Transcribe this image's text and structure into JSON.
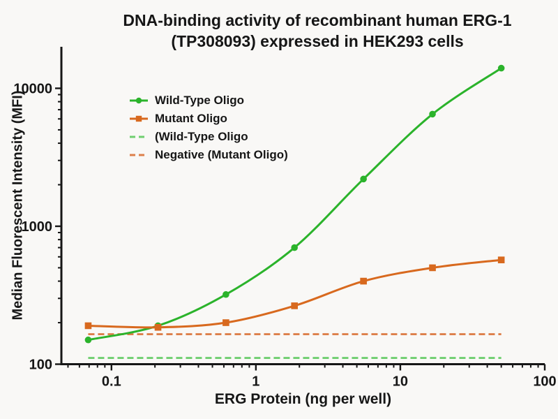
{
  "figure": {
    "background": "#f9f8f6",
    "text_color": "#161616",
    "axis_color": "#161616"
  },
  "chart_data": {
    "type": "line",
    "title": "DNA-binding activity of recombinant human ERG-1 (TP308093) expressed in HEK293 cells",
    "title_line1": "DNA-binding activity of recombinant human ERG-1",
    "title_line2": "(TP308093) expressed in HEK293 cells",
    "xlabel": "ERG Protein (ng per well)",
    "ylabel": "Median Fluorescent Intensity  (MFI)",
    "xscale": "log",
    "yscale": "log",
    "xlim": [
      0.045,
      100
    ],
    "ylim": [
      100,
      20000
    ],
    "grid": false,
    "legend_position": "upper-left-inside",
    "x_ticks": [
      0.1,
      1,
      10,
      100
    ],
    "x_tick_labels": [
      "0.1",
      "1",
      "10",
      "100"
    ],
    "y_ticks": [
      100,
      1000,
      10000
    ],
    "y_tick_labels": [
      "100",
      "1000",
      "10000"
    ],
    "x": [
      0.069,
      0.21,
      0.62,
      1.85,
      5.56,
      16.7,
      50
    ],
    "series": [
      {
        "name": "Wild-Type Oligo",
        "kind": "curve",
        "color": "#2bb32b",
        "line": "solid",
        "marker": "circle",
        "values": [
          150,
          190,
          320,
          700,
          2200,
          6500,
          14000
        ]
      },
      {
        "name": "Mutant Oligo",
        "kind": "curve",
        "color": "#d8691e",
        "line": "solid",
        "marker": "square",
        "values": [
          190,
          185,
          200,
          265,
          400,
          500,
          570
        ]
      },
      {
        "name": "(Wild-Type Oligo",
        "kind": "hline",
        "color": "#6fce6f",
        "line": "dashed",
        "marker": "none",
        "y": 111,
        "x_start": 0.069,
        "x_end": 50
      },
      {
        "name": "Negative (Mutant Oligo)",
        "kind": "hline",
        "color": "#dd7f4a",
        "line": "dashed",
        "marker": "none",
        "y": 165,
        "x_start": 0.069,
        "x_end": 50
      }
    ]
  }
}
